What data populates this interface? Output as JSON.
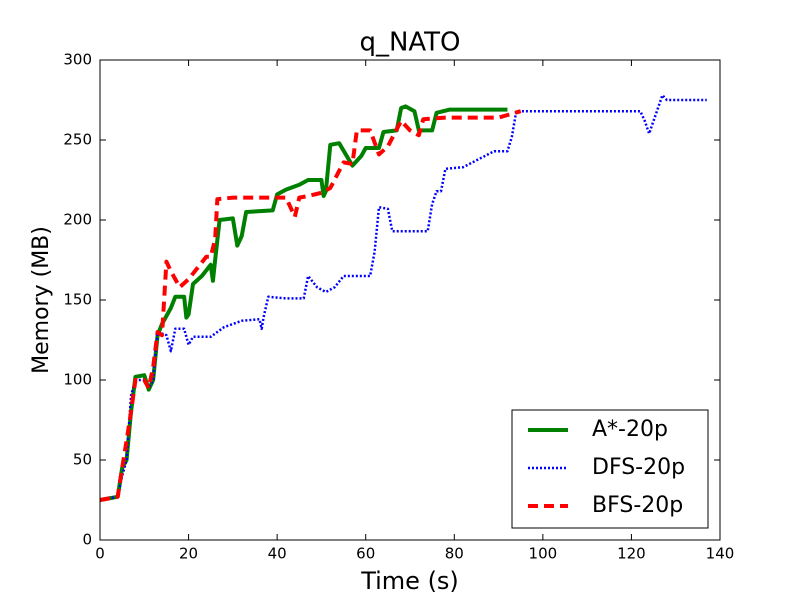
{
  "chart_data": {
    "type": "line",
    "title": "q_NATO",
    "x_label": "Time (s)",
    "y_label": "Memory (MB)",
    "xlim": [
      0,
      140
    ],
    "xticks": [
      0,
      20,
      40,
      60,
      80,
      100,
      120,
      140
    ],
    "ylim": [
      0,
      300
    ],
    "yticks": [
      0,
      50,
      100,
      150,
      200,
      250,
      300
    ],
    "legend_position": "lower right",
    "series": [
      {
        "name": "A*-20p",
        "color": "#008000",
        "linestyle": "solid",
        "x": [
          0,
          4,
          5,
          6,
          7,
          8,
          10,
          11,
          12,
          13,
          14,
          15,
          16,
          17,
          19,
          19.5,
          20,
          21,
          23,
          25,
          25.5,
          26,
          27,
          30,
          31,
          32,
          33,
          39,
          40,
          42,
          45,
          47,
          50,
          50.5,
          51,
          52,
          54,
          57,
          59,
          60,
          63,
          64,
          67,
          68,
          69,
          71,
          72,
          75,
          76,
          79,
          92
        ],
        "values": [
          25,
          27,
          45,
          50,
          80,
          102,
          103,
          94,
          100,
          128,
          135,
          140,
          145,
          152,
          152,
          139,
          141,
          160,
          165,
          172,
          162,
          175,
          200,
          201,
          184,
          190,
          205,
          206,
          216,
          219,
          222,
          225,
          225,
          215,
          218,
          247,
          248,
          234,
          240,
          245,
          245,
          255,
          256,
          270,
          271,
          268,
          256,
          256,
          267,
          269,
          269
        ]
      },
      {
        "name": "DFS-20p",
        "color": "#0000ff",
        "linestyle": "dotted",
        "x": [
          0,
          4,
          5,
          6,
          7,
          8,
          10,
          11,
          12,
          13,
          15,
          16,
          17,
          19,
          20,
          21,
          25,
          28,
          32,
          36,
          36.5,
          37,
          38,
          42,
          46,
          47,
          49,
          51,
          53,
          55,
          61,
          62,
          63,
          65,
          66,
          74,
          75,
          76,
          77,
          78,
          82,
          89,
          92,
          93,
          94,
          100,
          120,
          122,
          123,
          124,
          125,
          127,
          128,
          137
        ],
        "values": [
          25,
          27,
          40,
          50,
          90,
          100,
          100,
          95,
          100,
          130,
          128,
          118,
          132,
          132,
          122,
          127,
          127,
          133,
          137,
          138,
          132,
          140,
          152,
          151,
          151,
          165,
          158,
          155,
          158,
          165,
          165,
          180,
          208,
          207,
          193,
          193,
          210,
          218,
          218,
          232,
          233,
          243,
          243,
          252,
          268,
          268,
          268,
          268,
          262,
          254,
          262,
          278,
          275,
          275
        ]
      },
      {
        "name": "BFS-20p",
        "color": "#ff0000",
        "linestyle": "dashed",
        "x": [
          0,
          4,
          5,
          6,
          7,
          8,
          10,
          11,
          12,
          13,
          14,
          15,
          16,
          18,
          20,
          22,
          24,
          25,
          26,
          26.5,
          30,
          42,
          44,
          45,
          47,
          50,
          52,
          55,
          57,
          58,
          61,
          63,
          65,
          68,
          70,
          72,
          73,
          78,
          85,
          90,
          95
        ],
        "values": [
          25,
          27,
          45,
          62,
          80,
          100,
          100,
          95,
          108,
          130,
          128,
          174,
          168,
          158,
          163,
          170,
          177,
          177,
          188,
          213,
          214,
          214,
          202,
          214,
          215,
          217,
          220,
          236,
          235,
          256,
          256,
          241,
          246,
          262,
          256,
          253,
          263,
          264,
          264,
          264,
          268
        ]
      }
    ]
  }
}
